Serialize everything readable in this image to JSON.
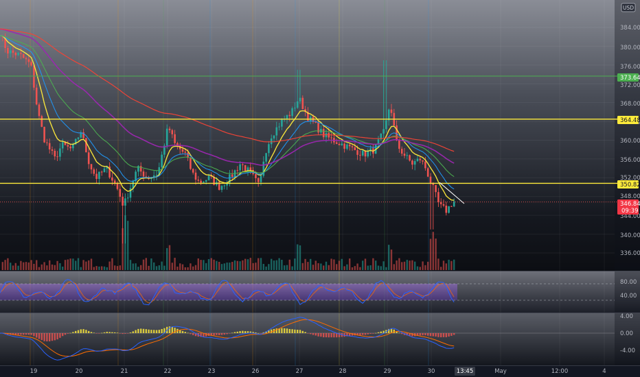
{
  "currency": "USD",
  "colors": {
    "background": "#131722",
    "grid": "#2a2e39",
    "up": "#26a69a",
    "down": "#ef5350",
    "hline": "#ffeb3b",
    "hline_green": "#4caf50",
    "stoch_k": "#2962ff",
    "stoch_d": "#ff6d00",
    "stoch_band": "#7e57c2",
    "macd": "#2962ff",
    "signal": "#ff6d00",
    "ma_fast": "#ffeb3b",
    "ma_mid": "#2196f3",
    "ma_slow": "#4caf50",
    "ma_longer": "#9c27b0",
    "ma_longest": "#f44336"
  },
  "x_axis_labels": [
    "19",
    "20",
    "21",
    "22",
    "23",
    "26",
    "27",
    "28",
    "29",
    "30",
    "13:45",
    "May",
    "12:00",
    "4"
  ],
  "price_axis": [
    "384.00",
    "380.00",
    "376.00",
    "372.00",
    "368.00",
    "364.00",
    "360.00",
    "356.00",
    "352.00",
    "348.00",
    "344.00",
    "340.00",
    "336.00"
  ],
  "price_badges": {
    "green": "373.64",
    "upper": "364.48",
    "lower": "350.82",
    "last_price": "346.84",
    "countdown": "09:39"
  },
  "stoch_axis": [
    "80.00",
    "40.00"
  ],
  "macd_axis": [
    "4.00",
    "0.00",
    "-4.00"
  ],
  "chart_data": [
    {
      "type": "candlestick",
      "ylim": [
        333,
        387
      ],
      "hlines": [
        373.64,
        364.48,
        350.82
      ],
      "last_price": 346.84,
      "anchors": [
        [
          0,
          383
        ],
        [
          10,
          379
        ],
        [
          30,
          378
        ],
        [
          45,
          376
        ],
        [
          55,
          366
        ],
        [
          65,
          360
        ],
        [
          80,
          356
        ],
        [
          90,
          359
        ],
        [
          105,
          358
        ],
        [
          118,
          362
        ],
        [
          130,
          355
        ],
        [
          140,
          352
        ],
        [
          155,
          354
        ],
        [
          170,
          350
        ],
        [
          180,
          346
        ],
        [
          190,
          350
        ],
        [
          200,
          354
        ],
        [
          215,
          352
        ],
        [
          230,
          353
        ],
        [
          245,
          363
        ],
        [
          255,
          359
        ],
        [
          270,
          357
        ],
        [
          280,
          353
        ],
        [
          290,
          351
        ],
        [
          305,
          352
        ],
        [
          320,
          350
        ],
        [
          335,
          352
        ],
        [
          350,
          355
        ],
        [
          365,
          353
        ],
        [
          378,
          350
        ],
        [
          385,
          357
        ],
        [
          395,
          361
        ],
        [
          410,
          364
        ],
        [
          425,
          366
        ],
        [
          435,
          369
        ],
        [
          448,
          365
        ],
        [
          460,
          363
        ],
        [
          472,
          361
        ],
        [
          485,
          360
        ],
        [
          500,
          359
        ],
        [
          515,
          358
        ],
        [
          530,
          357
        ],
        [
          545,
          358
        ],
        [
          560,
          362
        ],
        [
          568,
          368
        ],
        [
          578,
          359
        ],
        [
          588,
          357
        ],
        [
          600,
          355
        ],
        [
          612,
          356
        ],
        [
          620,
          354
        ],
        [
          630,
          350
        ],
        [
          640,
          346
        ],
        [
          650,
          345
        ],
        [
          660,
          347
        ]
      ],
      "moving_averages": [
        {
          "color": "ma_fast",
          "period": 8,
          "width": 1.4
        },
        {
          "color": "ma_mid",
          "period": 16,
          "width": 1.1
        },
        {
          "color": "ma_slow",
          "period": 28,
          "width": 1.1
        },
        {
          "color": "ma_longer",
          "period": 56,
          "width": 1.6
        },
        {
          "color": "ma_longest",
          "period": 110,
          "width": 1.2
        }
      ]
    },
    {
      "type": "oscillator",
      "ylim": [
        -5,
        105
      ],
      "bands": [
        20,
        80
      ]
    },
    {
      "type": "macd",
      "ylim": [
        -7,
        7
      ]
    }
  ]
}
